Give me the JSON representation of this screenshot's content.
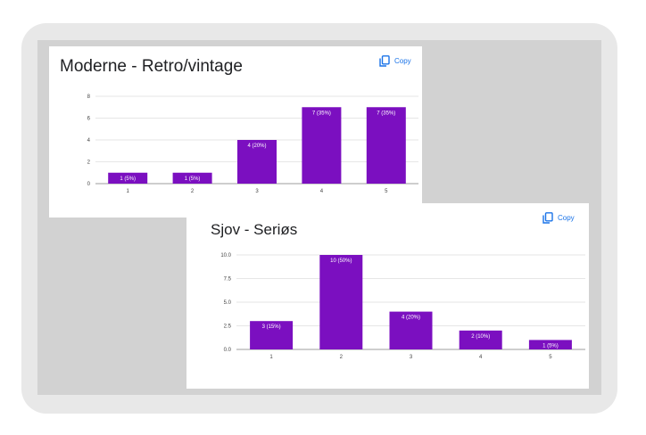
{
  "colors": {
    "bar": "#7b0fc0",
    "grid": "#e6e6e6",
    "axis": "#9e9e9e",
    "copy": "#1a73e8"
  },
  "cards": [
    {
      "title": "Moderne - Retro/vintage",
      "copy_label": "Copy",
      "icon": "copy-icon"
    },
    {
      "title": "Sjov - Seriøs",
      "copy_label": "Copy",
      "icon": "copy-icon"
    }
  ],
  "chart_data": [
    {
      "type": "bar",
      "title": "Moderne - Retro/vintage",
      "categories": [
        "1",
        "2",
        "3",
        "4",
        "5"
      ],
      "values": [
        1,
        1,
        4,
        7,
        7
      ],
      "data_labels": [
        "1 (5%)",
        "1 (5%)",
        "4 (20%)",
        "7 (35%)",
        "7 (35%)"
      ],
      "ylim": [
        0,
        8
      ],
      "yticks": [
        "0",
        "2",
        "4",
        "6",
        "8"
      ],
      "ytick_values": [
        0,
        2,
        4,
        6,
        8
      ],
      "xlabel": "",
      "ylabel": "",
      "grid": true
    },
    {
      "type": "bar",
      "title": "Sjov - Seriøs",
      "categories": [
        "1",
        "2",
        "3",
        "4",
        "5"
      ],
      "values": [
        3,
        10,
        4,
        2,
        1
      ],
      "data_labels": [
        "3 (15%)",
        "10 (50%)",
        "4 (20%)",
        "2 (10%)",
        "1 (5%)"
      ],
      "ylim": [
        0,
        10
      ],
      "yticks": [
        "0.0",
        "2.5",
        "5.0",
        "7.5",
        "10.0"
      ],
      "ytick_values": [
        0,
        2.5,
        5,
        7.5,
        10
      ],
      "xlabel": "",
      "ylabel": "",
      "grid": true
    }
  ]
}
